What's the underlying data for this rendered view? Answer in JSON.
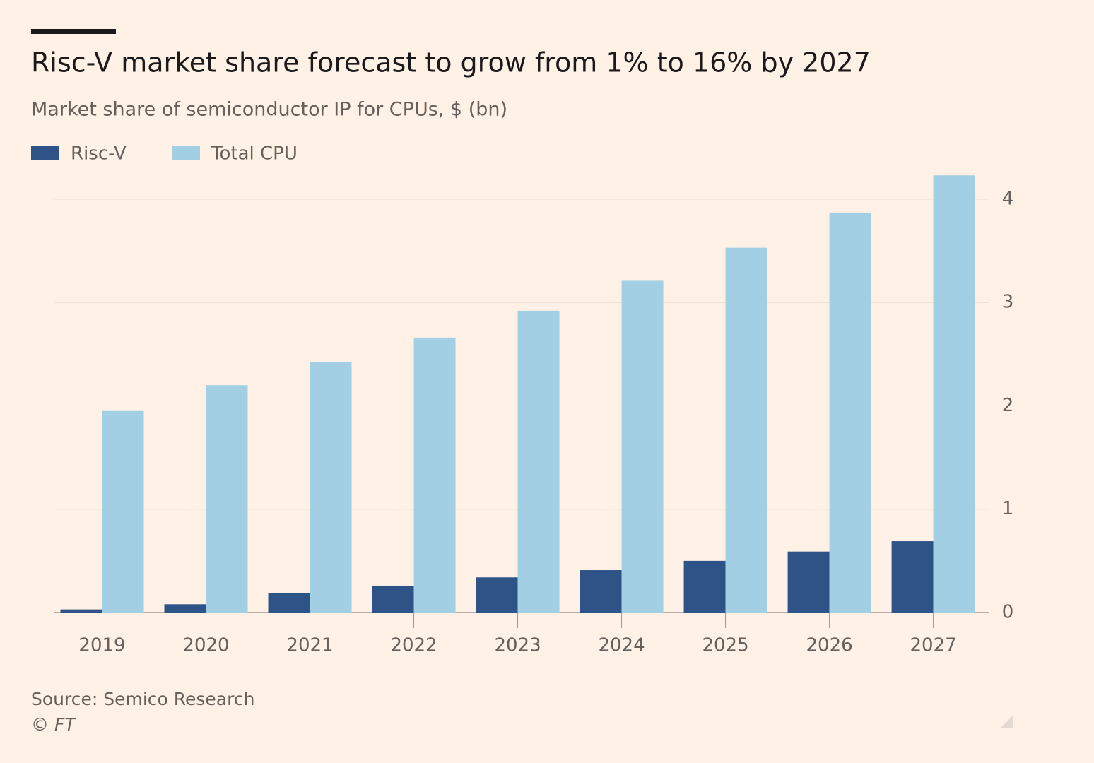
{
  "chart_data": {
    "type": "bar",
    "title": "Risc-V market share forecast to grow from 1% to 16% by 2027",
    "subtitle": "Market share of semiconductor IP for CPUs, $ (bn)",
    "categories": [
      "2019",
      "2020",
      "2021",
      "2022",
      "2023",
      "2024",
      "2025",
      "2026",
      "2027"
    ],
    "series": [
      {
        "name": "Risc-V",
        "color": "#2e5387",
        "values": [
          0.03,
          0.08,
          0.19,
          0.26,
          0.34,
          0.41,
          0.5,
          0.59,
          0.69
        ]
      },
      {
        "name": "Total CPU",
        "color": "#a2cfe4",
        "values": [
          1.95,
          2.2,
          2.42,
          2.66,
          2.92,
          3.21,
          3.53,
          3.87,
          4.23
        ]
      }
    ],
    "ylim": [
      0,
      4.3
    ],
    "yticks": [
      0,
      1,
      2,
      3,
      4
    ],
    "grid": true,
    "source": "Source: Semico Research",
    "credit": "© FT"
  }
}
